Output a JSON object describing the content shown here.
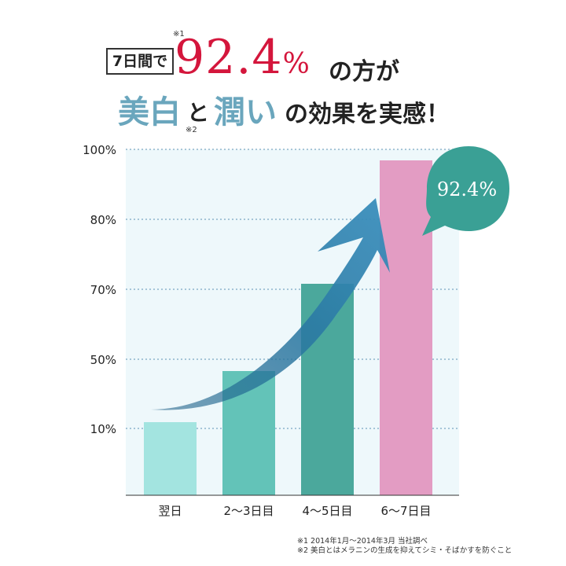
{
  "header": {
    "days_badge": "7日間で",
    "note_mark_1": "※1",
    "note_mark_2": "※2",
    "percent_value": "92.4",
    "percent_unit": "%",
    "line1_tail": "の方が",
    "line2_bihaku": "美白",
    "line2_to": "と",
    "line2_uruoi": "潤い",
    "line2_rest": "の効果を実感！"
  },
  "colors": {
    "accent_red": "#d4163c",
    "accent_blue": "#6aa6bd",
    "bar_1": "#a3e4e0",
    "bar_2": "#63c3b8",
    "bar_3": "#4ba89c",
    "bar_4": "#e39cc3",
    "callout": "#3aa095",
    "arrow": "#2f7fa6",
    "plot_bg": "#eef8fb",
    "grid": "#7aa6c2"
  },
  "callout_label": "92.4%",
  "chart_data": {
    "type": "bar",
    "categories": [
      "翌日",
      "2〜3日目",
      "4〜5日目",
      "6〜7日目"
    ],
    "values": [
      11,
      45,
      71,
      92.4
    ],
    "y_ticks": [
      "10%",
      "50%",
      "70%",
      "80%",
      "100%"
    ],
    "title": "",
    "xlabel": "",
    "ylabel": "",
    "ylim": [
      0,
      100
    ],
    "grid": true,
    "annotation": "92.4%",
    "trend_arrow": true
  },
  "footnotes": [
    "※1 2014年1月〜2014年3月 当社調べ",
    "※2 美白とはメラニンの生成を抑えてシミ・そばかすを防ぐこと"
  ]
}
